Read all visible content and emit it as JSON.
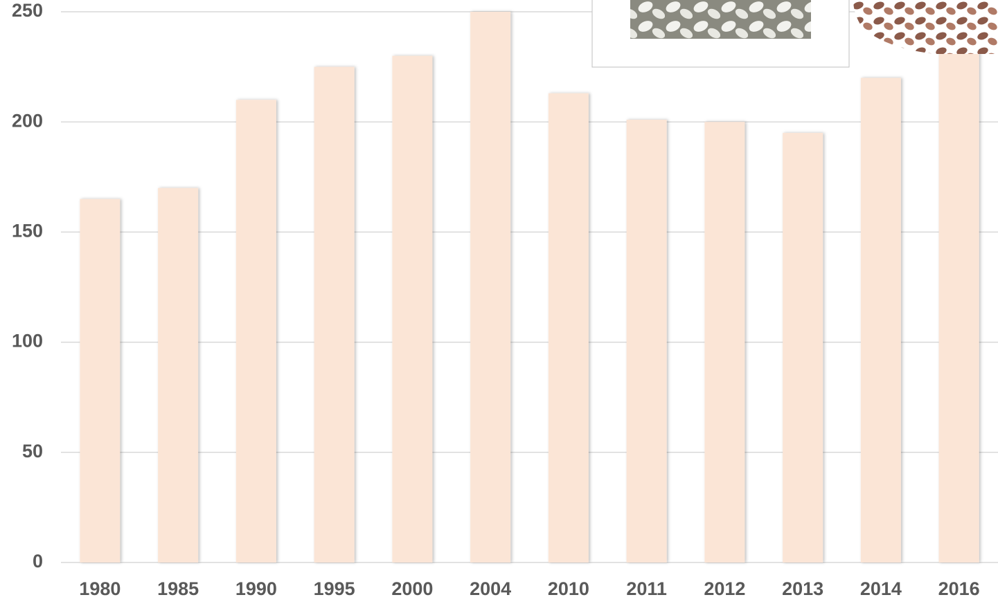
{
  "chart_data": {
    "type": "bar",
    "categories": [
      "1980",
      "1985",
      "1990",
      "1995",
      "2000",
      "2004",
      "2010",
      "2011",
      "2012",
      "2013",
      "2014",
      "2016"
    ],
    "values": [
      165,
      170,
      210,
      225,
      230,
      250,
      213,
      201,
      200,
      195,
      220,
      240
    ],
    "color": "#fbe5d6",
    "ylim": [
      0,
      250
    ],
    "yticks": [
      0,
      50,
      100,
      150,
      200,
      250
    ],
    "grid": true
  }
}
